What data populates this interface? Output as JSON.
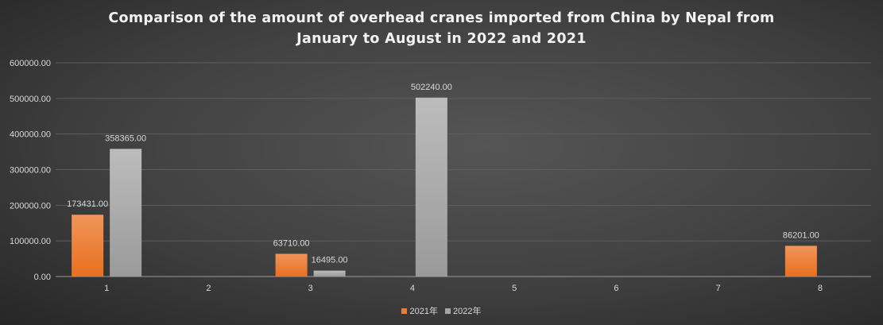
{
  "chart_data": {
    "type": "bar",
    "title_line1": "Comparison of the amount of overhead cranes imported from China by Nepal from",
    "title_line2": "January to August in 2022 and 2021",
    "categories": [
      "1",
      "2",
      "3",
      "4",
      "5",
      "6",
      "7",
      "8"
    ],
    "series": [
      {
        "name": "2021年",
        "color": "#ED7D31",
        "values": [
          173431.0,
          null,
          63710.0,
          null,
          null,
          null,
          null,
          86201.0
        ]
      },
      {
        "name": "2022年",
        "color": "#A5A5A5",
        "values": [
          358365.0,
          null,
          16495.0,
          502240.0,
          null,
          null,
          null,
          null
        ]
      }
    ],
    "ylim": [
      0,
      600000
    ],
    "yticks": [
      "0.00",
      "100000.00",
      "200000.00",
      "300000.00",
      "400000.00",
      "500000.00",
      "600000.00"
    ],
    "xlabel": "",
    "ylabel": "",
    "grid": true,
    "legend": "bottom"
  }
}
